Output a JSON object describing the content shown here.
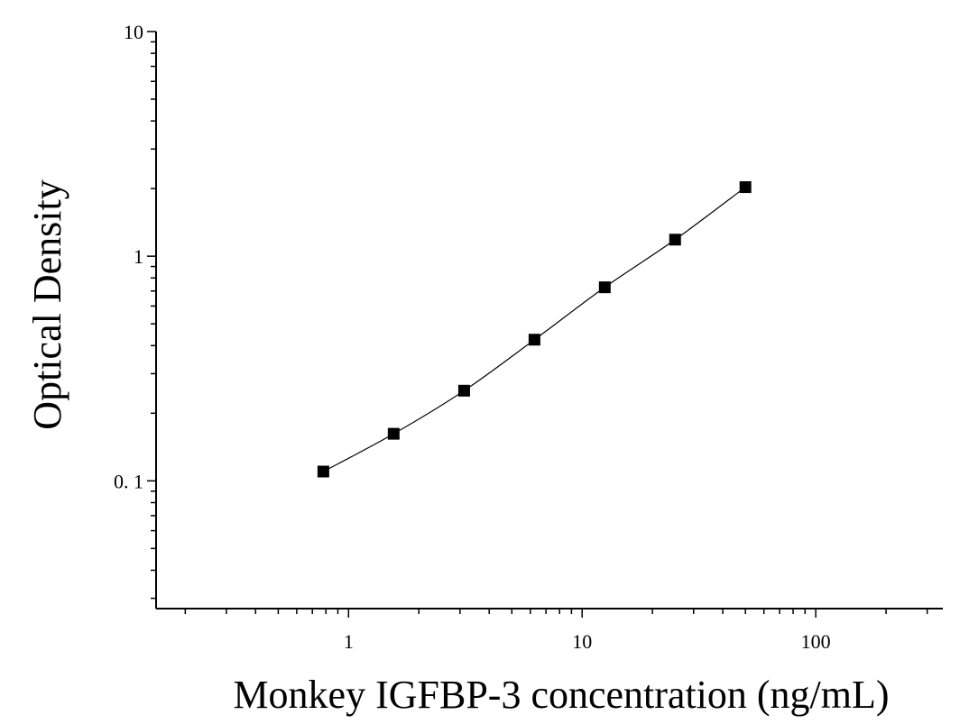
{
  "chart_data": {
    "type": "scatter",
    "title": "",
    "xlabel": "Monkey IGFBP-3 concentration (ng/mL)",
    "ylabel": "Optical Density",
    "xscale": "log",
    "yscale": "log",
    "xlim": [
      0.15,
      350
    ],
    "ylim": [
      0.027,
      10
    ],
    "x_ticks": [
      {
        "value": 1,
        "label": "1"
      },
      {
        "value": 10,
        "label": "10"
      },
      {
        "value": 100,
        "label": "100"
      }
    ],
    "y_ticks": [
      {
        "value": 0.1,
        "label": "0. 1"
      },
      {
        "value": 1,
        "label": "1"
      },
      {
        "value": 10,
        "label": "10"
      }
    ],
    "grid": false,
    "legend": "none",
    "marker": "square",
    "fit_line": true,
    "color": "#000000",
    "series": [
      {
        "x": [
          0.78,
          1.56,
          3.125,
          6.25,
          12.5,
          25,
          50
        ],
        "y": [
          0.11,
          0.162,
          0.252,
          0.425,
          0.727,
          1.185,
          2.03
        ]
      }
    ]
  }
}
